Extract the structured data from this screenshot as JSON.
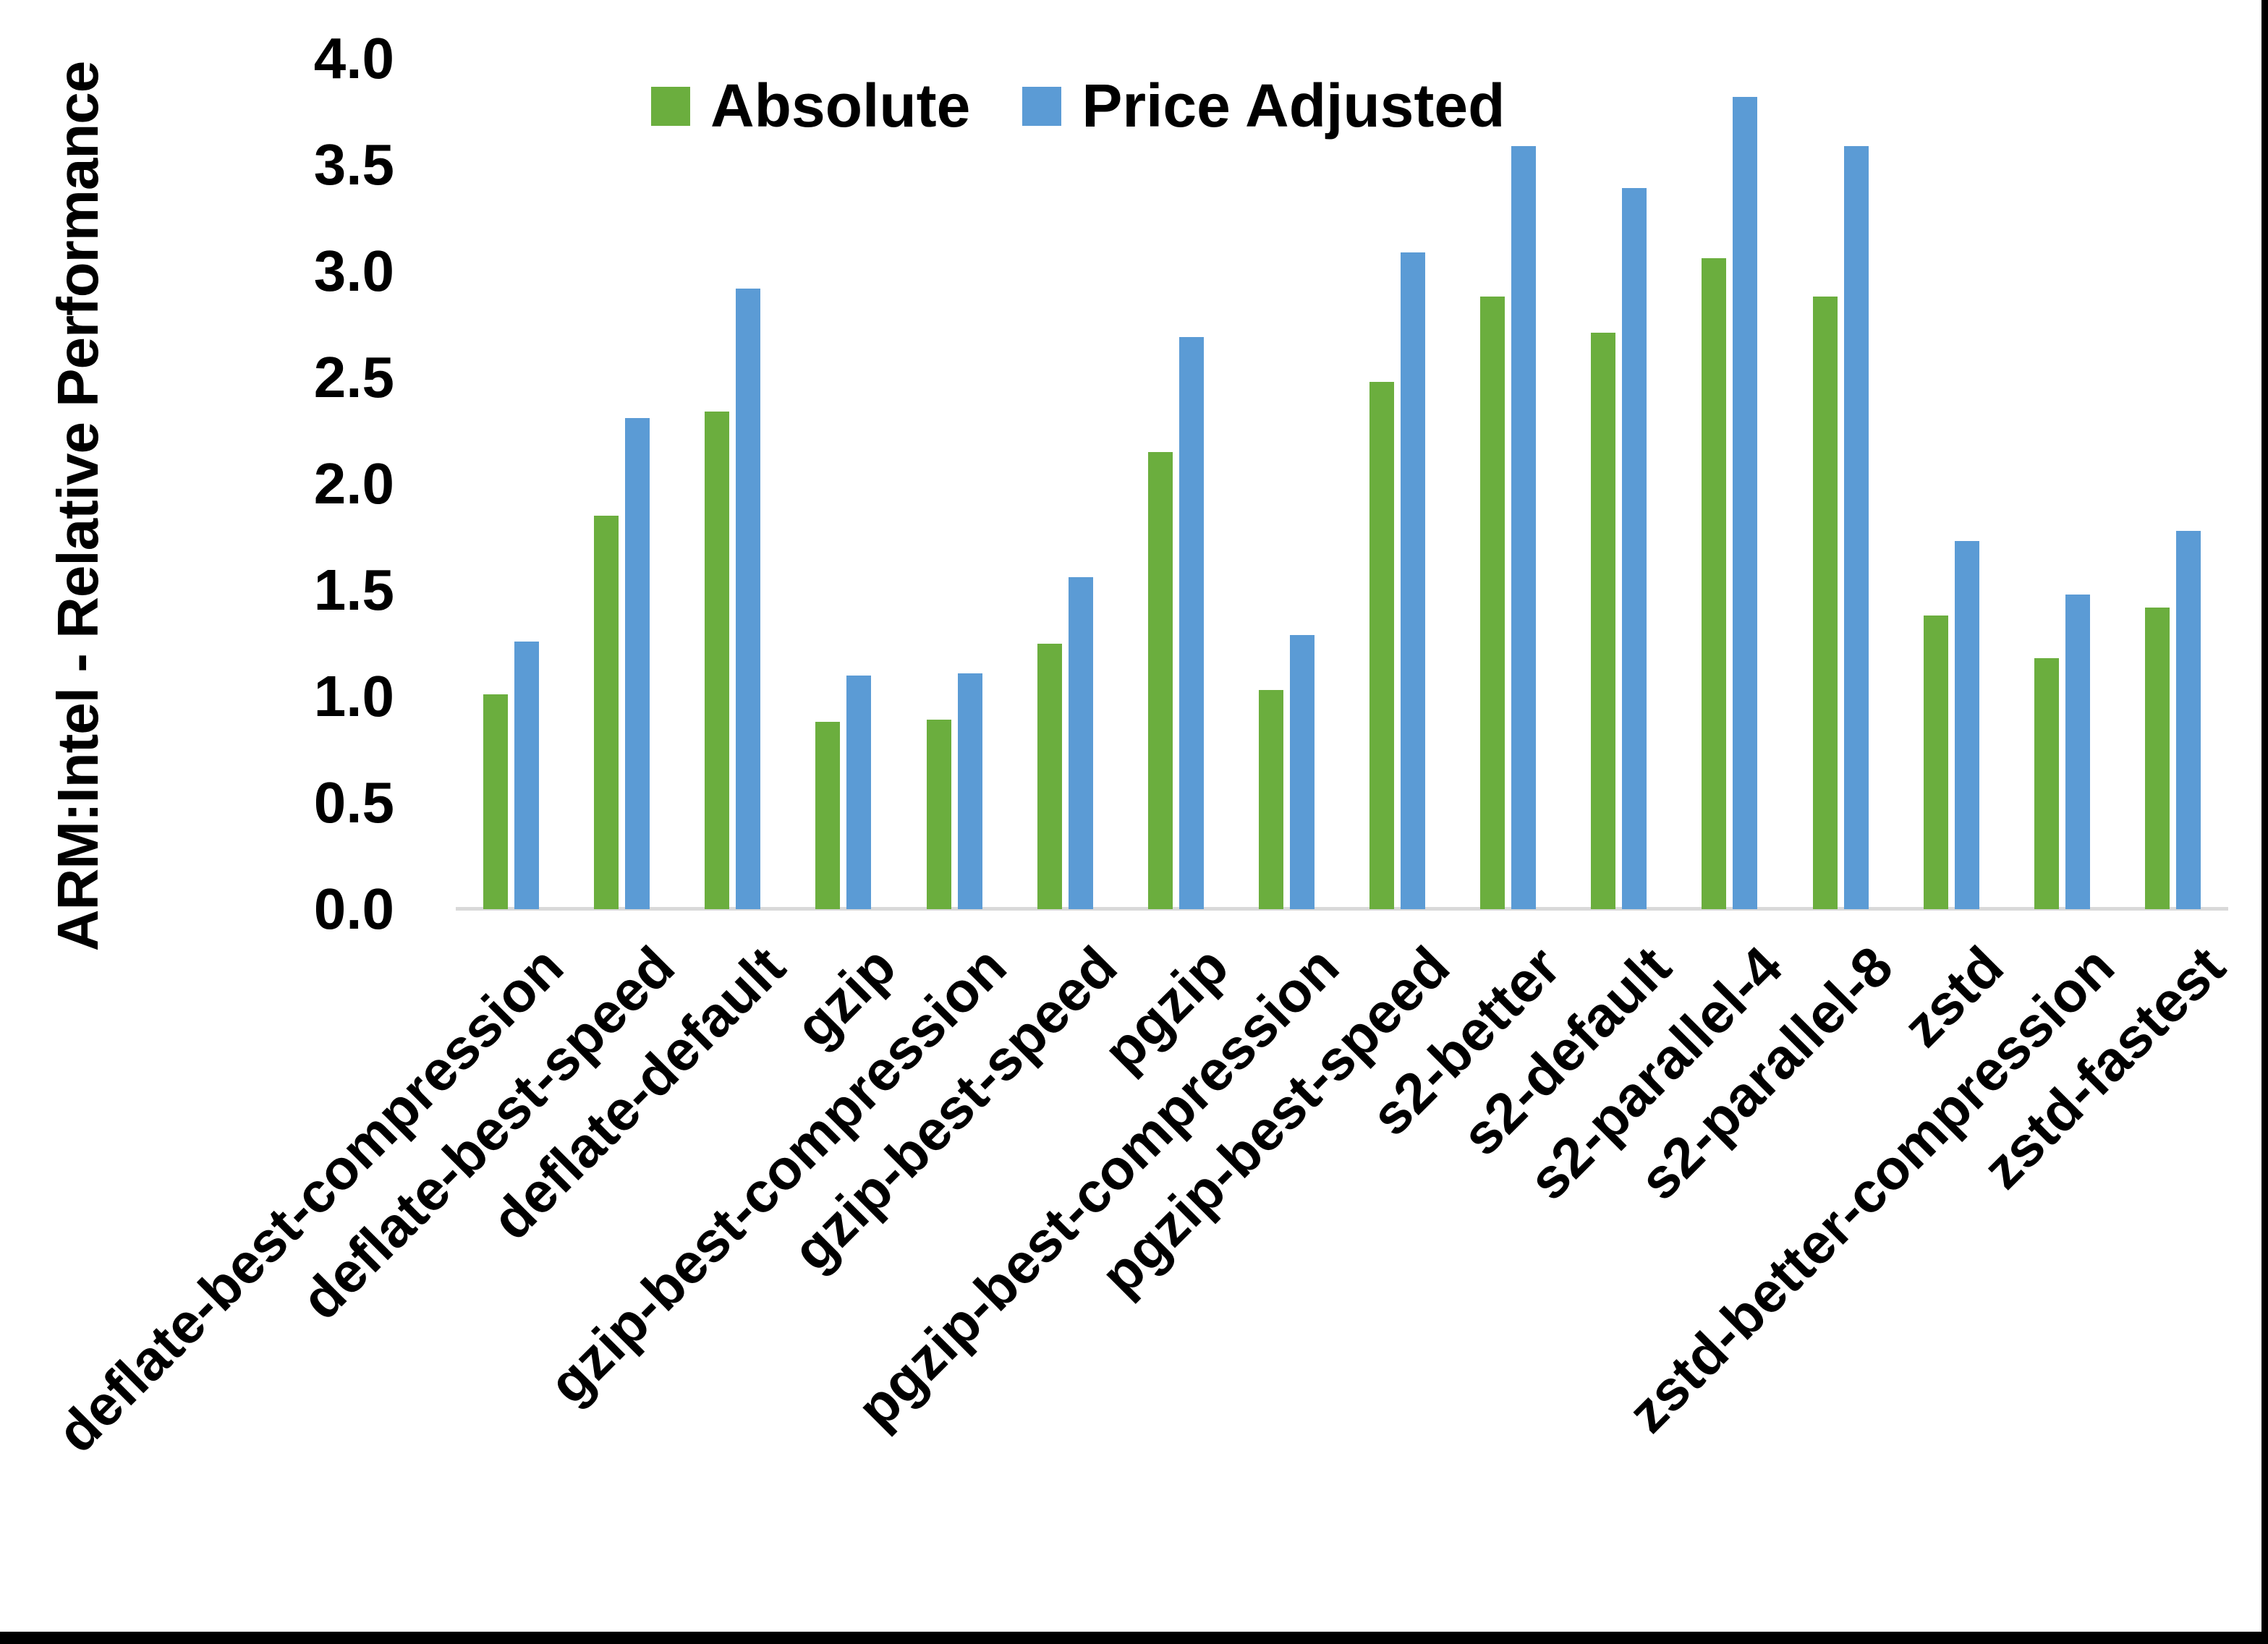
{
  "chart_data": {
    "type": "bar",
    "title": "",
    "ylabel": "ARM:Intel - Relative Performance",
    "xlabel": "",
    "ylim": [
      0.0,
      4.0
    ],
    "ytick_step": 0.5,
    "ytick_format_decimals": 1,
    "grid": false,
    "legend_position": "top-center",
    "axis_line_color": "#d9d9d9",
    "categories": [
      "deflate-best-compression",
      "deflate-best-speed",
      "deflate-default",
      "gzip",
      "gzip-best-compression",
      "gzip-best-speed",
      "pgzip",
      "pgzip-best-compression",
      "pgzip-best-speed",
      "s2-better",
      "s2-default",
      "s2-parallel-4",
      "s2-parallel-8",
      "zstd",
      "zstd-better-compression",
      "zstd-fastest"
    ],
    "series": [
      {
        "name": "Absolute",
        "color": "#6bae3e",
        "values": [
          1.01,
          1.85,
          2.34,
          0.88,
          0.89,
          1.25,
          2.15,
          1.03,
          2.48,
          2.88,
          2.71,
          3.06,
          2.88,
          1.38,
          1.18,
          1.42
        ]
      },
      {
        "name": "Price Adjusted",
        "color": "#5b9bd5",
        "values": [
          1.26,
          2.31,
          2.92,
          1.1,
          1.11,
          1.56,
          2.69,
          1.29,
          3.09,
          3.59,
          3.39,
          3.82,
          3.59,
          1.73,
          1.48,
          1.78
        ]
      }
    ]
  },
  "frame": {
    "border_color": "#000000"
  }
}
